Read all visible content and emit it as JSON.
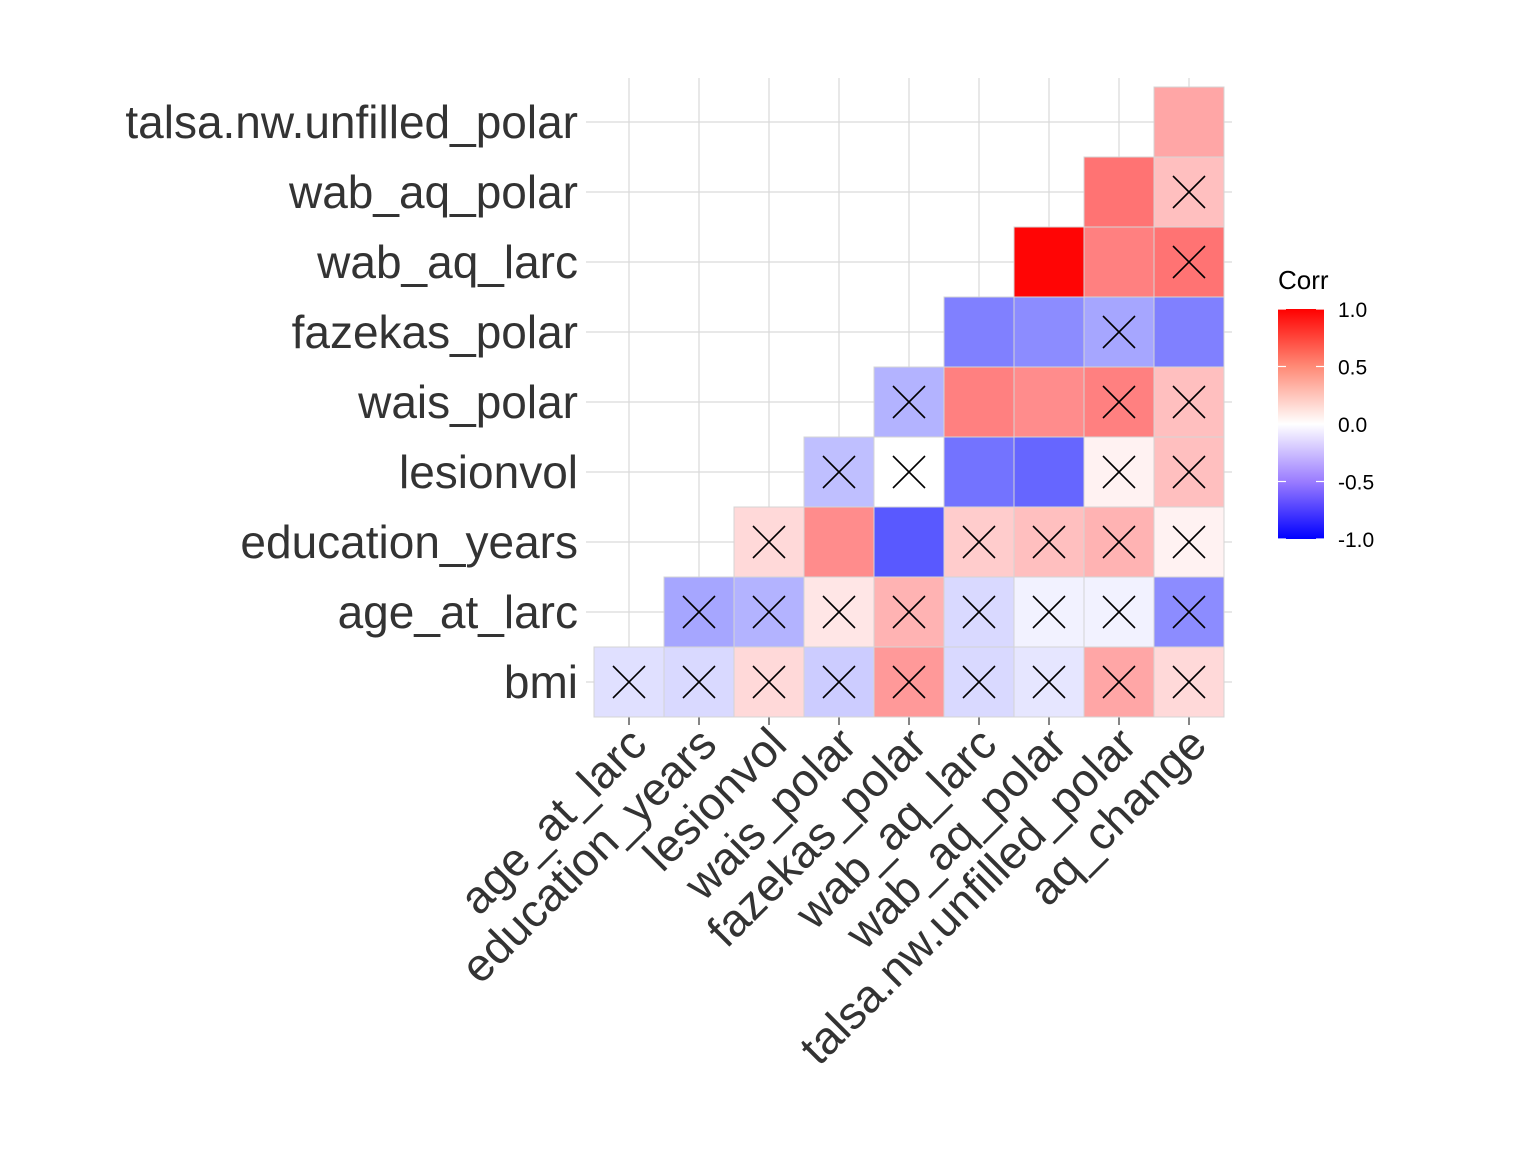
{
  "chart_data": {
    "type": "heatmap",
    "title": "",
    "xlabel": "",
    "ylabel": "",
    "x": [
      "age_at_larc",
      "education_years",
      "lesionvol",
      "wais_polar",
      "fazekas_polar",
      "wab_aq_larc",
      "wab_aq_polar",
      "talsa.nw.unfilled_polar",
      "aq_change"
    ],
    "y": [
      "bmi",
      "age_at_larc",
      "education_years",
      "lesionvol",
      "wais_polar",
      "fazekas_polar",
      "wab_aq_larc",
      "wab_aq_polar",
      "talsa.nw.unfilled_polar"
    ],
    "values": [
      [
        -0.12,
        -0.15,
        0.15,
        -0.2,
        0.4,
        -0.15,
        -0.1,
        0.35,
        0.15
      ],
      [
        null,
        -0.35,
        -0.3,
        0.1,
        0.3,
        -0.15,
        -0.05,
        -0.05,
        -0.45
      ],
      [
        null,
        null,
        0.15,
        0.45,
        -0.65,
        0.2,
        0.25,
        0.3,
        0.05
      ],
      [
        null,
        null,
        null,
        -0.25,
        0.0,
        -0.55,
        -0.6,
        0.05,
        0.25
      ],
      [
        null,
        null,
        null,
        null,
        -0.3,
        0.5,
        0.45,
        0.5,
        0.25
      ],
      [
        null,
        null,
        null,
        null,
        null,
        -0.5,
        -0.45,
        -0.35,
        -0.5
      ],
      [
        null,
        null,
        null,
        null,
        null,
        null,
        0.98,
        0.5,
        0.55
      ],
      [
        null,
        null,
        null,
        null,
        null,
        null,
        null,
        0.55,
        0.25
      ],
      [
        null,
        null,
        null,
        null,
        null,
        null,
        null,
        null,
        0.35
      ]
    ],
    "insignificant": [
      [
        true,
        true,
        true,
        true,
        true,
        true,
        true,
        true,
        true
      ],
      [
        false,
        true,
        true,
        true,
        true,
        true,
        true,
        true,
        true
      ],
      [
        false,
        false,
        true,
        false,
        false,
        true,
        true,
        true,
        true
      ],
      [
        false,
        false,
        false,
        true,
        true,
        false,
        false,
        true,
        true
      ],
      [
        false,
        false,
        false,
        false,
        true,
        false,
        false,
        true,
        true
      ],
      [
        false,
        false,
        false,
        false,
        false,
        false,
        false,
        true,
        false
      ],
      [
        false,
        false,
        false,
        false,
        false,
        false,
        false,
        false,
        true
      ],
      [
        false,
        false,
        false,
        false,
        false,
        false,
        false,
        false,
        true
      ],
      [
        false,
        false,
        false,
        false,
        false,
        false,
        false,
        false,
        false
      ]
    ],
    "legend": {
      "title": "Corr",
      "ticks": [
        "1.0",
        "0.5",
        "0.0",
        "-0.5",
        "-1.0"
      ],
      "range": [
        -1,
        1
      ],
      "placement": "right"
    },
    "colors": {
      "low": "#0000FF",
      "mid": "#FFFFFF",
      "high": "#FF0000",
      "grid": "#D9D9D9",
      "cross": "#000000"
    },
    "grid": true
  }
}
